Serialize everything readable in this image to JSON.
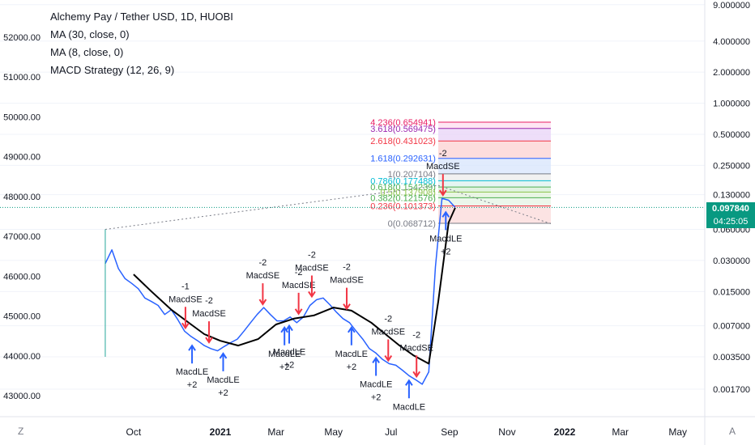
{
  "legend": {
    "title": "Alchemy Pay / Tether USD, 1D, HUOBI",
    "indicators": [
      "MA (30, close, 0)",
      "MA (8, close, 0)",
      "MACD Strategy (12, 26, 9)"
    ]
  },
  "price_tag": {
    "price": "0.097840",
    "countdown": "04:25:05"
  },
  "corner": {
    "left": "Z",
    "right": "A"
  },
  "colors": {
    "price_series": "#2962ff",
    "ma30": "#000000",
    "sell_arrow": "#f23645",
    "buy_arrow": "#2962ff",
    "badge": "#089981"
  },
  "chart_data": {
    "type": "line",
    "title": "Alchemy Pay / Tether USD, 1D, HUOBI",
    "right_axis_log_scale": true,
    "left_axis_ticks": [
      "52000.00",
      "51000.00",
      "50000.00",
      "49000.00",
      "48000.00",
      "47000.00",
      "46000.00",
      "45000.00",
      "44000.00",
      "43000.00"
    ],
    "right_axis_ticks": [
      "9.000000",
      "4.000000",
      "2.000000",
      "1.000000",
      "0.500000",
      "0.250000",
      "0.130000",
      "0.060000",
      "0.030000",
      "0.015000",
      "0.007000",
      "0.003500",
      "0.001700"
    ],
    "x_ticks": [
      "Oct",
      "2021",
      "Mar",
      "May",
      "Jul",
      "Sep",
      "Nov",
      "2022",
      "Mar",
      "May"
    ],
    "series": [
      {
        "name": "",
        "x": [
          "2020-09-01",
          "2020-09-08",
          "2020-09-15",
          "2020-09-22",
          "2020-09-29",
          "2020-10-06",
          "2020-10-13",
          "2020-10-20",
          "2020-10-27",
          "2020-11-03",
          "2020-11-10",
          "2020-11-17",
          "2020-11-24",
          "2020-12-01",
          "2020-12-08",
          "2020-12-15",
          "2020-12-22",
          "2020-12-29",
          "2021-01-05",
          "2021-01-12",
          "2021-01-19",
          "2021-01-26",
          "2021-02-02",
          "2021-02-09",
          "2021-02-16",
          "2021-02-23",
          "2021-03-02",
          "2021-03-09",
          "2021-03-16",
          "2021-03-23",
          "2021-03-30",
          "2021-04-06",
          "2021-04-13",
          "2021-04-20",
          "2021-04-27",
          "2021-05-04",
          "2021-05-11",
          "2021-05-18",
          "2021-05-25",
          "2021-06-01",
          "2021-06-08",
          "2021-06-15",
          "2021-06-22",
          "2021-06-29",
          "2021-07-06",
          "2021-07-13",
          "2021-07-20",
          "2021-07-27",
          "2021-08-03",
          "2021-08-10",
          "2021-08-17",
          "2021-08-24",
          "2021-08-31",
          "2021-09-07"
        ],
        "values": [
          0.028,
          0.038,
          0.025,
          0.02,
          0.018,
          0.016,
          0.013,
          0.012,
          0.011,
          0.009,
          0.01,
          0.008,
          0.0062,
          0.0055,
          0.005,
          0.0045,
          0.0042,
          0.004,
          0.0044,
          0.0048,
          0.0052,
          0.0062,
          0.0075,
          0.009,
          0.0105,
          0.009,
          0.0078,
          0.0078,
          0.0085,
          0.0075,
          0.0085,
          0.011,
          0.0125,
          0.013,
          0.0112,
          0.0095,
          0.0082,
          0.0075,
          0.0062,
          0.0052,
          0.0042,
          0.0038,
          0.0033,
          0.003,
          0.0029,
          0.0026,
          0.0023,
          0.0021,
          0.0019,
          0.0025,
          0.026,
          0.12,
          0.115,
          0.098
        ]
      },
      {
        "name": "MA (30, close, 0)",
        "x": [
          "2020-10-01",
          "2020-10-20",
          "2020-11-10",
          "2020-12-01",
          "2020-12-15",
          "2021-01-01",
          "2021-01-20",
          "2021-02-10",
          "2021-03-01",
          "2021-03-20",
          "2021-04-10",
          "2021-05-01",
          "2021-05-20",
          "2021-06-10",
          "2021-06-25",
          "2021-07-10",
          "2021-07-25",
          "2021-08-10",
          "2021-08-20",
          "2021-08-31",
          "2021-09-07"
        ],
        "values": [
          0.022,
          0.015,
          0.01,
          0.0072,
          0.0058,
          0.005,
          0.0045,
          0.0052,
          0.0072,
          0.0082,
          0.0088,
          0.0105,
          0.0098,
          0.0075,
          0.0058,
          0.0045,
          0.0036,
          0.003,
          0.012,
          0.07,
          0.097
        ]
      }
    ],
    "fib_levels": [
      {
        "label": "4.236(0.654941)",
        "value": 0.654941
      },
      {
        "label": "3.618(0.569475)",
        "value": 0.569475
      },
      {
        "label": "2.618(0.431023)",
        "value": 0.431023
      },
      {
        "label": "1.618(0.292631)",
        "value": 0.292631
      },
      {
        "label": "1(0.207104)",
        "value": 0.207104
      },
      {
        "label": "0.786(0.177488)",
        "value": 0.177488
      },
      {
        "label": "0.618(0.154239)",
        "value": 0.154239
      },
      {
        "label": "0.5(0.137908)",
        "value": 0.137908
      },
      {
        "label": "0.382(0.121576)",
        "value": 0.121576
      },
      {
        "label": "0.236(0.101373)",
        "value": 0.101373
      },
      {
        "label": "0(0.068712)",
        "value": 0.068712
      }
    ],
    "signals": [
      {
        "type": "sell",
        "date": "2020-11-25",
        "y": 0.0062,
        "labels": [
          "-1",
          "MacdSE"
        ]
      },
      {
        "type": "buy",
        "date": "2020-12-02",
        "y": 0.005,
        "labels": [
          "MacdLE",
          "+2"
        ]
      },
      {
        "type": "sell",
        "date": "2020-12-20",
        "y": 0.0045,
        "labels": [
          "-2",
          "MacdSE"
        ]
      },
      {
        "type": "buy",
        "date": "2021-01-04",
        "y": 0.0042,
        "labels": [
          "MacdLE",
          "+2"
        ]
      },
      {
        "type": "sell",
        "date": "2021-02-15",
        "y": 0.0105,
        "labels": [
          "-2",
          "MacdSE"
        ]
      },
      {
        "type": "buy",
        "date": "2021-03-10",
        "y": 0.0075,
        "labels": [
          "MacdLE",
          "+2"
        ]
      },
      {
        "type": "sell",
        "date": "2021-03-25",
        "y": 0.0085,
        "labels": [
          "-2",
          "MacdSE"
        ]
      },
      {
        "type": "sell",
        "date": "2021-04-08",
        "y": 0.0125,
        "labels": [
          "-2",
          "MacdSE"
        ]
      },
      {
        "type": "buy",
        "date": "2021-03-15",
        "y": 0.0078,
        "labels": [
          "MacdLE",
          "+2"
        ]
      },
      {
        "type": "sell",
        "date": "2021-05-15",
        "y": 0.0095,
        "labels": [
          "-2",
          "MacdSE"
        ]
      },
      {
        "type": "buy",
        "date": "2021-05-20",
        "y": 0.0075,
        "labels": [
          "MacdLE",
          "+2"
        ]
      },
      {
        "type": "buy",
        "date": "2021-06-15",
        "y": 0.0038,
        "labels": [
          "MacdLE",
          "+2"
        ]
      },
      {
        "type": "sell",
        "date": "2021-06-28",
        "y": 0.003,
        "labels": [
          "-2",
          "MacdSE"
        ]
      },
      {
        "type": "buy",
        "date": "2021-07-20",
        "y": 0.0023,
        "labels": [
          "MacdLE"
        ]
      },
      {
        "type": "sell",
        "date": "2021-07-28",
        "y": 0.0021,
        "labels": [
          "-2",
          "MacdSE"
        ]
      },
      {
        "type": "buy",
        "date": "2021-08-28",
        "y": 0.098,
        "labels": [
          "MacdLE",
          "+2"
        ]
      },
      {
        "type": "sell",
        "date": "2021-08-25",
        "y": 0.12,
        "labels": [
          "-2",
          "MacdSE"
        ]
      }
    ]
  }
}
